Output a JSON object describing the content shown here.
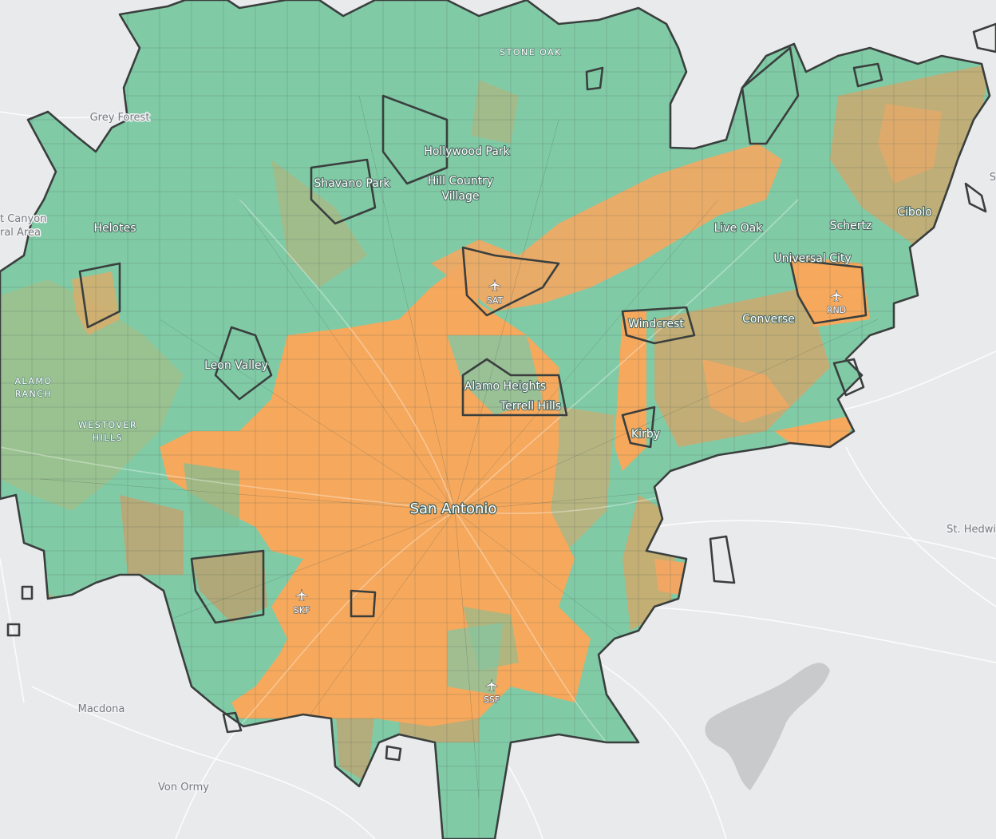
{
  "map": {
    "places": {
      "stone_oak": "STONE OAK",
      "grey_forest": "Grey Forest",
      "hollywood_park": "Hollywood Park",
      "shavano_park": "Shavano Park",
      "hill_country_1": "Hill Country",
      "hill_country_2": "Village",
      "canyon_1": "t Canyon",
      "canyon_2": "ral Area",
      "helotes": "Helotes",
      "live_oak": "Live Oak",
      "schertz": "Schertz",
      "cibolo": "Cibolo",
      "universal_city": "Universal City",
      "windcrest": "Windcrest",
      "converse": "Converse",
      "leon_valley": "Leon Valley",
      "alamo_ranch_1": "ALAMO",
      "alamo_ranch_2": "RANCH",
      "westover_1": "WESTOVER",
      "westover_2": "HILLS",
      "alamo_heights": "Alamo Heights",
      "terrell_hills": "Terrell Hills",
      "kirby": "Kirby",
      "san_antonio": "San Antonio",
      "st_hedwig": "St. Hedwi",
      "macdona": "Macdona",
      "von_ormy": "Von Ormy",
      "edge_s": "S"
    },
    "airports": {
      "sat": "SAT",
      "rnd": "RND",
      "skf": "SKF",
      "ssf": "SSF"
    },
    "colors": {
      "background": "#e9eaeb",
      "green": "#80cba6",
      "olive": "#bfb07a",
      "orange": "#f6a85c",
      "boundary": "#3a3f3e",
      "airport": "#f4f4f4"
    },
    "icons": [
      "airport-icon"
    ]
  }
}
